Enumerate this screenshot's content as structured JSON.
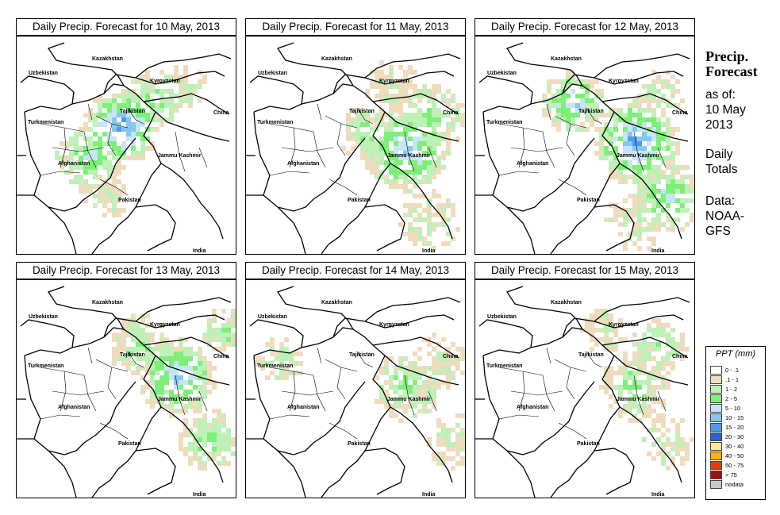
{
  "panels": [
    {
      "title": "Daily Precip. Forecast for  10 May, 2013"
    },
    {
      "title": "Daily Precip. Forecast for  11 May, 2013"
    },
    {
      "title": "Daily Precip. Forecast for  12 May, 2013"
    },
    {
      "title": "Daily Precip. Forecast for  13 May, 2013"
    },
    {
      "title": "Daily Precip. Forecast for  14 May, 2013"
    },
    {
      "title": "Daily Precip. Forecast for  15 May, 2013"
    }
  ],
  "map_labels": {
    "kazakhstan": "Kazakhstan",
    "uzbekistan": "Uzbekistan",
    "kyrgyzstan": "Kyrgyzstan",
    "tajikistan": "Tajikistan",
    "china": "China",
    "turkmenistan": "Turkmenistan",
    "afghanistan": "Afghanistan",
    "jammu_kashmir": "Jammu Kashmir",
    "pakistan": "Pakistan",
    "india": "India"
  },
  "sidebar": {
    "title_line1": "Precip.",
    "title_line2": "Forecast",
    "asof_line1": "as of:",
    "asof_line2": "10 May",
    "asof_line3": "2013",
    "totals_line1": "Daily",
    "totals_line2": "Totals",
    "data_line1": "Data:",
    "data_line2": "NOAA-",
    "data_line3": "GFS"
  },
  "legend": {
    "title": "PPT (mm)",
    "items": [
      {
        "label": "0 - .1",
        "color": "#ffffff"
      },
      {
        "label": ".1 - 1",
        "color": "#efdcbf"
      },
      {
        "label": "1 - 2",
        "color": "#bff0b8"
      },
      {
        "label": "2 - 5",
        "color": "#7eef78"
      },
      {
        "label": "5 - 10",
        "color": "#c6e6f6"
      },
      {
        "label": "10 - 15",
        "color": "#86c6ef"
      },
      {
        "label": "15 - 20",
        "color": "#4f9cef"
      },
      {
        "label": "20 - 30",
        "color": "#2a62d8"
      },
      {
        "label": "30 - 40",
        "color": "#ffe896"
      },
      {
        "label": "40 - 50",
        "color": "#ffb200"
      },
      {
        "label": "50 - 75",
        "color": "#e44000"
      },
      {
        "label": "> 75",
        "color": "#a01010"
      },
      {
        "label": "nodata",
        "color": "#c8c8c8"
      }
    ]
  }
}
